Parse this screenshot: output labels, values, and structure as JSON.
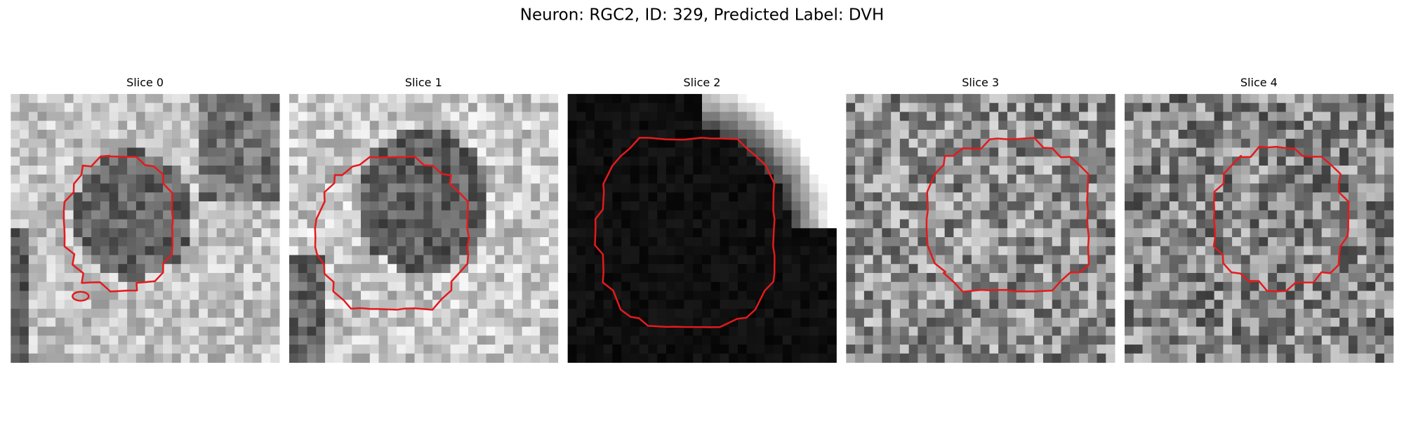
{
  "header": {
    "title": "Neuron: RGC2, ID: 329, Predicted Label: DVH"
  },
  "panels": [
    {
      "title": "Slice 0"
    },
    {
      "title": "Slice 1"
    },
    {
      "title": "Slice 2"
    },
    {
      "title": "Slice 3"
    },
    {
      "title": "Slice 4"
    }
  ]
}
